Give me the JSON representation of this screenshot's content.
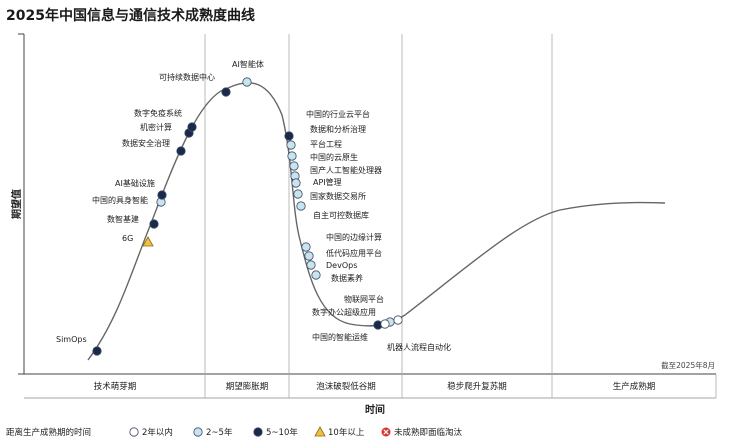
{
  "chart_data": {
    "type": "hype_cycle",
    "title": "2025年中国信息与通信技术成熟度曲线",
    "ylabel": "期望值",
    "xlabel": "时间",
    "note": "截至2025年8月",
    "phases": [
      "技术萌芽期",
      "期望膨胀期",
      "泡沫破裂低谷期",
      "稳步爬升复苏期",
      "生产成熟期"
    ],
    "legend": {
      "title": "距离生产成熟期的时间",
      "items": [
        {
          "key": "lt2",
          "label": "2年以内",
          "shape": "circle",
          "color": "#ffffff"
        },
        {
          "key": "2to5",
          "label": "2~5年",
          "shape": "circle",
          "color": "#c9e4ee"
        },
        {
          "key": "5to10",
          "label": "5~10年",
          "shape": "circle",
          "color": "#1b2a4a"
        },
        {
          "key": "gt10",
          "label": "10年以上",
          "shape": "triangle",
          "color": "#f2c040"
        },
        {
          "key": "obsolete",
          "label": "未成熟即面临淘汰",
          "shape": "x",
          "color": "#d9342b"
        }
      ]
    },
    "technologies": [
      {
        "label": "SimOps",
        "category": "5to10"
      },
      {
        "label": "6G",
        "category": "gt10"
      },
      {
        "label": "数智基建",
        "category": "5to10"
      },
      {
        "label": "中国的具身智能",
        "category": "2to5"
      },
      {
        "label": "AI基础设施",
        "category": "5to10"
      },
      {
        "label": "数据安全治理",
        "category": "5to10"
      },
      {
        "label": "机密计算",
        "category": "5to10"
      },
      {
        "label": "数字免疫系统",
        "category": "5to10"
      },
      {
        "label": "可持续数据中心",
        "category": "5to10"
      },
      {
        "label": "AI智能体",
        "category": "2to5"
      },
      {
        "label": "中国的行业云平台",
        "category": "5to10"
      },
      {
        "label": "数据和分析治理",
        "category": "2to5"
      },
      {
        "label": "平台工程",
        "category": "2to5"
      },
      {
        "label": "中国的云原生",
        "category": "2to5"
      },
      {
        "label": "国产人工智能处理器",
        "category": "2to5"
      },
      {
        "label": "API管理",
        "category": "2to5"
      },
      {
        "label": "国家数据交易所",
        "category": "2to5"
      },
      {
        "label": "自主可控数据库",
        "category": "2to5"
      },
      {
        "label": "中国的边缘计算",
        "category": "2to5"
      },
      {
        "label": "低代码应用平台",
        "category": "2to5"
      },
      {
        "label": "DevOps",
        "category": "2to5"
      },
      {
        "label": "数据素养",
        "category": "2to5"
      },
      {
        "label": "物联网平台",
        "category": "lt2"
      },
      {
        "label": "数字办公超级应用",
        "category": "2to5"
      },
      {
        "label": "中国的智能运维",
        "category": "5to10"
      },
      {
        "label": "机器人流程自动化",
        "category": "lt2"
      }
    ]
  }
}
